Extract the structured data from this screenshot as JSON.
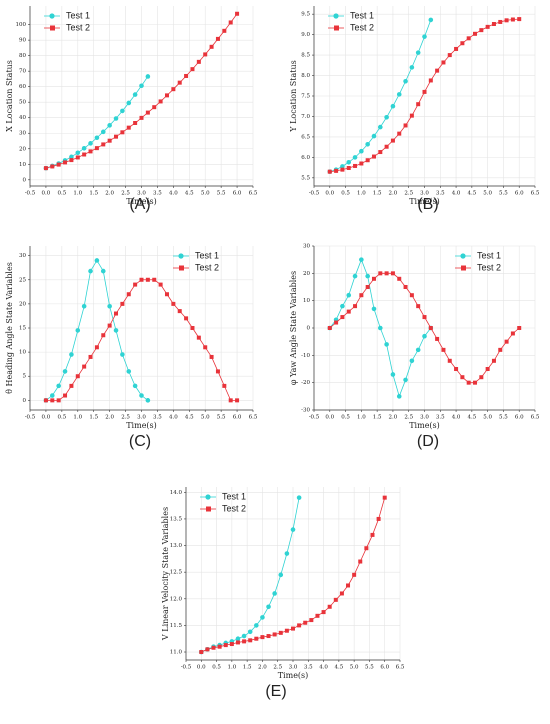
{
  "chart_data": [
    {
      "type": "line",
      "label": "(A)",
      "xlabel": "Time(s)",
      "ylabel": "X Location Status",
      "legend": "upper left",
      "grid": true,
      "xlim": [
        -0.5,
        6.5
      ],
      "xticks": [
        -0.5,
        {
          "value": 0,
          "label": "0.0"
        },
        0.5,
        {
          "value": 1,
          "label": "1.0"
        },
        1.5,
        {
          "value": 2,
          "label": "2.0"
        },
        2.5,
        {
          "value": 3,
          "label": "3.0"
        },
        3.5,
        {
          "value": 4,
          "label": "4.0"
        },
        4.5,
        {
          "value": 5,
          "label": "5.0"
        },
        5.5,
        {
          "value": 6,
          "label": "6.0"
        },
        6.5
      ],
      "ylim": [
        -4,
        112
      ],
      "yticks": [
        0,
        10,
        20,
        30,
        40,
        50,
        60,
        70,
        80,
        90,
        100
      ],
      "series": [
        {
          "name": "Test 1",
          "color": "#2fd3d3",
          "marker": "circle",
          "x": [
            0,
            0.2,
            0.4,
            0.6,
            0.8,
            1,
            1.2,
            1.4,
            1.6,
            1.8,
            2,
            2.2,
            2.4,
            2.6,
            2.8,
            3,
            3.2
          ],
          "values": [
            7.5,
            8.9,
            10.5,
            12.5,
            14.8,
            17.4,
            20.3,
            23.5,
            27.1,
            30.9,
            35.1,
            39.5,
            44.4,
            49.5,
            54.9,
            60.6,
            66.6
          ]
        },
        {
          "name": "Test 2",
          "color": "#e8333a",
          "marker": "square",
          "x": [
            0,
            0.2,
            0.4,
            0.6,
            0.8,
            1,
            1.2,
            1.4,
            1.6,
            1.8,
            2,
            2.2,
            2.4,
            2.6,
            2.8,
            3,
            3.2,
            3.4,
            3.6,
            3.8,
            4,
            4.2,
            4.4,
            4.6,
            4.8,
            5,
            5.2,
            5.4,
            5.6,
            5.8,
            6
          ],
          "values": [
            7.5,
            8.6,
            9.8,
            11.2,
            12.7,
            14.4,
            16.3,
            18.3,
            20.4,
            22.8,
            25.2,
            27.8,
            30.6,
            33.6,
            36.6,
            39.9,
            43.3,
            46.8,
            50.5,
            54.4,
            58.4,
            62.6,
            66.9,
            71.3,
            76,
            80.8,
            85.7,
            90.8,
            96,
            101.4,
            107
          ]
        }
      ]
    },
    {
      "type": "line",
      "label": "(B)",
      "xlabel": "Time(s)",
      "ylabel": "Y Location Status",
      "legend": "upper left",
      "grid": true,
      "xlim": [
        -0.5,
        6.5
      ],
      "xticks": [
        -0.5,
        {
          "value": 0,
          "label": "0.0"
        },
        0.5,
        {
          "value": 1,
          "label": "1.0"
        },
        1.5,
        {
          "value": 2,
          "label": "2.0"
        },
        2.5,
        {
          "value": 3,
          "label": "3.0"
        },
        3.5,
        {
          "value": 4,
          "label": "4.0"
        },
        4.5,
        {
          "value": 5,
          "label": "5.0"
        },
        5.5,
        {
          "value": 6,
          "label": "6.0"
        },
        6.5
      ],
      "ylim": [
        5.3,
        9.7
      ],
      "yticks": [
        5.5,
        {
          "value": 6,
          "label": "6.0"
        },
        6.5,
        {
          "value": 7,
          "label": "7.0"
        },
        7.5,
        {
          "value": 8,
          "label": "8.0"
        },
        8.5,
        {
          "value": 9,
          "label": "9.0"
        },
        9.5
      ],
      "series": [
        {
          "name": "Test 1",
          "color": "#2fd3d3",
          "marker": "circle",
          "x": [
            0,
            0.2,
            0.4,
            0.6,
            0.8,
            1,
            1.2,
            1.4,
            1.6,
            1.8,
            2,
            2.2,
            2.4,
            2.6,
            2.8,
            3,
            3.2
          ],
          "values": [
            5.65,
            5.7,
            5.78,
            5.88,
            6,
            6.15,
            6.32,
            6.52,
            6.74,
            6.98,
            7.25,
            7.54,
            7.86,
            8.2,
            8.56,
            8.95,
            9.36
          ]
        },
        {
          "name": "Test 2",
          "color": "#e8333a",
          "marker": "square",
          "x": [
            0,
            0.2,
            0.4,
            0.6,
            0.8,
            1,
            1.2,
            1.4,
            1.6,
            1.8,
            2,
            2.2,
            2.4,
            2.6,
            2.8,
            3,
            3.2,
            3.4,
            3.6,
            3.8,
            4,
            4.2,
            4.4,
            4.6,
            4.8,
            5,
            5.2,
            5.4,
            5.6,
            5.8,
            6
          ],
          "values": [
            5.65,
            5.67,
            5.7,
            5.74,
            5.79,
            5.85,
            5.93,
            6.02,
            6.13,
            6.26,
            6.41,
            6.58,
            6.78,
            7.02,
            7.3,
            7.6,
            7.88,
            8.12,
            8.32,
            8.5,
            8.65,
            8.79,
            8.91,
            9.02,
            9.11,
            9.19,
            9.26,
            9.31,
            9.35,
            9.37,
            9.38
          ]
        }
      ]
    },
    {
      "type": "line",
      "label": "(C)",
      "xlabel": "Time(s)",
      "ylabel": "θ Heading Angle State Variables",
      "legend": "upper right",
      "grid": true,
      "xlim": [
        -0.5,
        6.5
      ],
      "xticks": [
        -0.5,
        {
          "value": 0,
          "label": "0.0"
        },
        0.5,
        {
          "value": 1,
          "label": "1.0"
        },
        1.5,
        {
          "value": 2,
          "label": "2.0"
        },
        2.5,
        {
          "value": 3,
          "label": "3.0"
        },
        3.5,
        {
          "value": 4,
          "label": "4.0"
        },
        4.5,
        {
          "value": 5,
          "label": "5.0"
        },
        5.5,
        {
          "value": 6,
          "label": "6.0"
        },
        6.5
      ],
      "ylim": [
        -2,
        32
      ],
      "yticks": [
        0,
        5,
        10,
        15,
        20,
        25,
        30
      ],
      "series": [
        {
          "name": "Test 1",
          "color": "#2fd3d3",
          "marker": "circle",
          "x": [
            0,
            0.2,
            0.4,
            0.6,
            0.8,
            1,
            1.2,
            1.4,
            1.6,
            1.8,
            2,
            2.2,
            2.4,
            2.6,
            2.8,
            3,
            3.2
          ],
          "values": [
            0,
            1,
            3,
            6,
            9.5,
            14.5,
            19.5,
            26.8,
            29,
            26.8,
            19.5,
            14.5,
            9.5,
            6,
            3,
            1,
            0
          ]
        },
        {
          "name": "Test 2",
          "color": "#e8333a",
          "marker": "square",
          "x": [
            0,
            0.2,
            0.4,
            0.6,
            0.8,
            1,
            1.2,
            1.4,
            1.6,
            1.8,
            2,
            2.2,
            2.4,
            2.6,
            2.8,
            3,
            3.2,
            3.4,
            3.6,
            3.8,
            4,
            4.2,
            4.4,
            4.6,
            4.8,
            5,
            5.2,
            5.4,
            5.6,
            5.8,
            6
          ],
          "values": [
            0,
            0,
            0,
            1,
            3,
            5,
            7,
            9,
            11,
            13.5,
            15.5,
            18,
            20,
            22,
            24,
            25,
            25,
            25,
            24,
            22,
            20,
            18.5,
            17,
            15,
            13,
            11,
            9,
            6,
            3,
            0,
            0
          ]
        }
      ]
    },
    {
      "type": "line",
      "label": "(D)",
      "xlabel": "Time(s)",
      "ylabel": "φ Yaw Angle State Variables",
      "legend": "upper right",
      "grid": true,
      "xlim": [
        -0.5,
        6.5
      ],
      "xticks": [
        -0.5,
        {
          "value": 0,
          "label": "0.0"
        },
        0.5,
        {
          "value": 1,
          "label": "1.0"
        },
        1.5,
        {
          "value": 2,
          "label": "2.0"
        },
        2.5,
        {
          "value": 3,
          "label": "3.0"
        },
        3.5,
        {
          "value": 4,
          "label": "4.0"
        },
        4.5,
        {
          "value": 5,
          "label": "5.0"
        },
        5.5,
        {
          "value": 6,
          "label": "6.0"
        },
        6.5
      ],
      "ylim": [
        -30,
        30
      ],
      "yticks": [
        -30,
        -20,
        -10,
        0,
        10,
        20,
        30
      ],
      "series": [
        {
          "name": "Test 1",
          "color": "#2fd3d3",
          "marker": "circle",
          "x": [
            0,
            0.2,
            0.4,
            0.6,
            0.8,
            1,
            1.2,
            1.4,
            1.6,
            1.8,
            2,
            2.2,
            2.4,
            2.6,
            2.8,
            3,
            3.2
          ],
          "values": [
            0,
            3,
            8,
            12,
            19,
            25,
            19,
            7,
            0,
            -6,
            -17,
            -25,
            -19,
            -12,
            -8,
            -3,
            0
          ]
        },
        {
          "name": "Test 2",
          "color": "#e8333a",
          "marker": "square",
          "x": [
            0,
            0.2,
            0.4,
            0.6,
            0.8,
            1,
            1.2,
            1.4,
            1.6,
            1.8,
            2,
            2.2,
            2.4,
            2.6,
            2.8,
            3,
            3.2,
            3.4,
            3.6,
            3.8,
            4,
            4.2,
            4.4,
            4.6,
            4.8,
            5,
            5.2,
            5.4,
            5.6,
            5.8,
            6
          ],
          "values": [
            0,
            2,
            4,
            6,
            8,
            12,
            15,
            18,
            20,
            20,
            20,
            18,
            15,
            12,
            8,
            4,
            0,
            -4,
            -8,
            -12,
            -15,
            -18,
            -20,
            -20,
            -18,
            -15,
            -12,
            -8,
            -5,
            -2,
            0
          ]
        }
      ]
    },
    {
      "type": "line",
      "label": "(E)",
      "xlabel": "Time(s)",
      "ylabel": "V Linear Velocity State Variables",
      "legend": "upper left",
      "grid": true,
      "xlim": [
        -0.5,
        6.5
      ],
      "xticks": [
        -0.5,
        {
          "value": 0,
          "label": "0.0"
        },
        0.5,
        {
          "value": 1,
          "label": "1.0"
        },
        1.5,
        {
          "value": 2,
          "label": "2.0"
        },
        2.5,
        {
          "value": 3,
          "label": "3.0"
        },
        3.5,
        {
          "value": 4,
          "label": "4.0"
        },
        4.5,
        {
          "value": 5,
          "label": "5.0"
        },
        5.5,
        {
          "value": 6,
          "label": "6.0"
        },
        6.5
      ],
      "ylim": [
        10.85,
        14.1
      ],
      "yticks": [
        {
          "value": 11,
          "label": "11.0"
        },
        11.5,
        {
          "value": 12,
          "label": "12.0"
        },
        12.5,
        {
          "value": 13,
          "label": "13.0"
        },
        13.5,
        {
          "value": 14,
          "label": "14.0"
        }
      ],
      "series": [
        {
          "name": "Test 1",
          "color": "#2fd3d3",
          "marker": "circle",
          "x": [
            0,
            0.2,
            0.4,
            0.6,
            0.8,
            1,
            1.2,
            1.4,
            1.6,
            1.8,
            2,
            2.2,
            2.4,
            2.6,
            2.8,
            3,
            3.2
          ],
          "values": [
            11,
            11.05,
            11.1,
            11.13,
            11.17,
            11.2,
            11.25,
            11.3,
            11.38,
            11.5,
            11.65,
            11.85,
            12.1,
            12.45,
            12.85,
            13.3,
            13.9
          ]
        },
        {
          "name": "Test 2",
          "color": "#e8333a",
          "marker": "square",
          "x": [
            0,
            0.2,
            0.4,
            0.6,
            0.8,
            1,
            1.2,
            1.4,
            1.6,
            1.8,
            2,
            2.2,
            2.4,
            2.6,
            2.8,
            3,
            3.2,
            3.4,
            3.6,
            3.8,
            4,
            4.2,
            4.4,
            4.6,
            4.8,
            5,
            5.2,
            5.4,
            5.6,
            5.8,
            6
          ],
          "values": [
            11,
            11.05,
            11.08,
            11.1,
            11.13,
            11.15,
            11.18,
            11.2,
            11.22,
            11.25,
            11.28,
            11.3,
            11.33,
            11.36,
            11.4,
            11.44,
            11.5,
            11.55,
            11.6,
            11.68,
            11.75,
            11.85,
            11.98,
            12.1,
            12.25,
            12.45,
            12.7,
            12.95,
            13.2,
            13.5,
            13.9
          ]
        }
      ]
    }
  ]
}
